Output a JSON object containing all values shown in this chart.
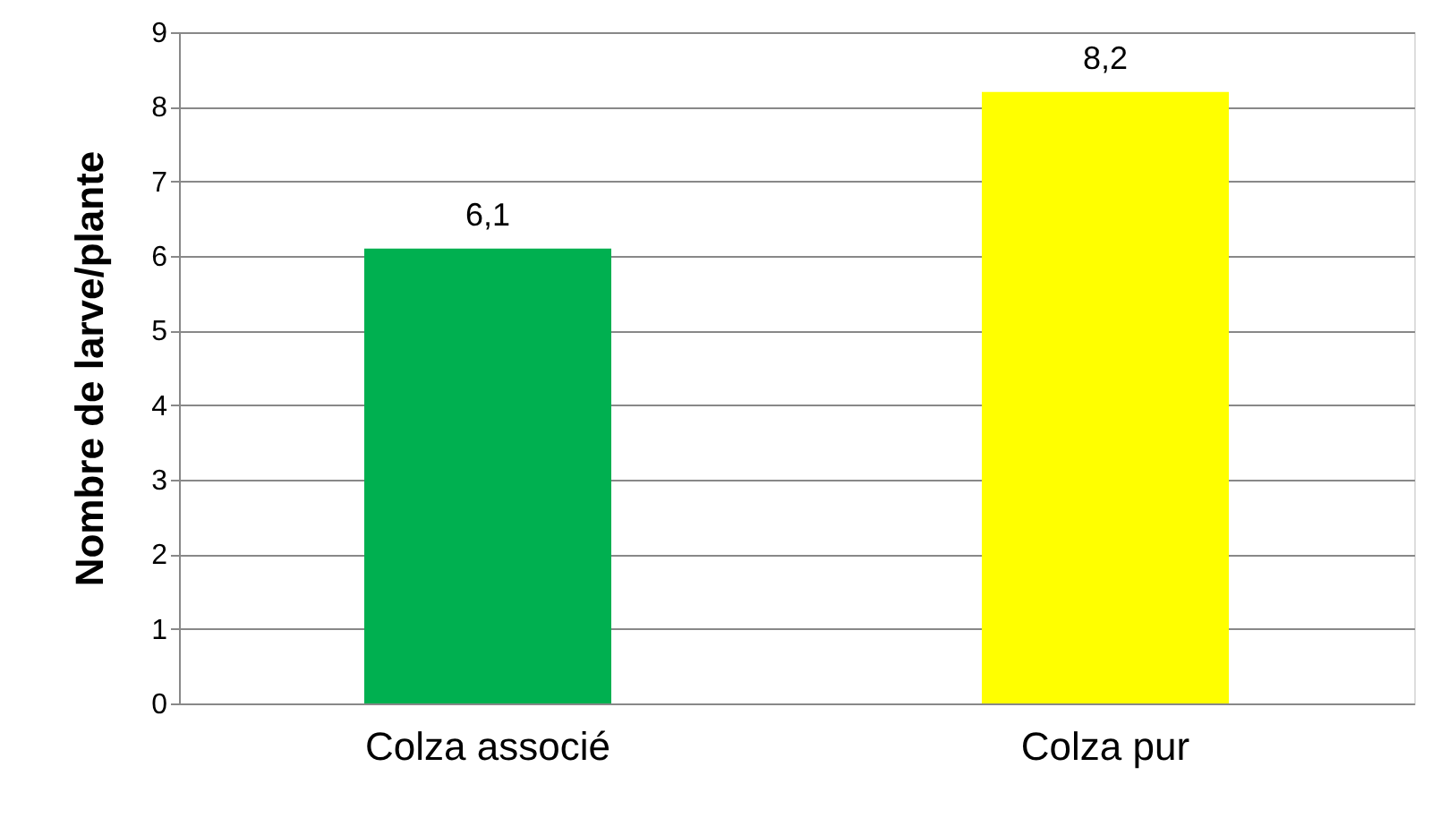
{
  "chart_data": {
    "type": "bar",
    "ylabel": "Nombre de larve/plante",
    "categories": [
      "Colza associé",
      "Colza pur"
    ],
    "values": [
      6.1,
      8.2
    ],
    "value_labels": [
      "6,1",
      "8,2"
    ],
    "colors": [
      "#00b050",
      "#ffff00"
    ],
    "ylim": [
      0,
      9
    ],
    "yticks": [
      0,
      1,
      2,
      3,
      4,
      5,
      6,
      7,
      8,
      9
    ],
    "grid": "y"
  }
}
